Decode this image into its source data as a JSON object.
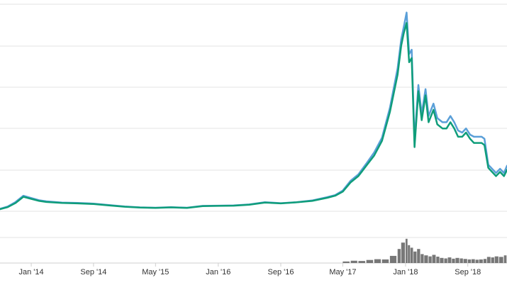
{
  "chart_data": {
    "type": "line",
    "title": "",
    "xlabel": "",
    "ylabel": "",
    "grid": true,
    "legend": "none",
    "x_ticks": [
      "Jan '14",
      "Sep '14",
      "May '15",
      "Jan '16",
      "Sep '16",
      "May '17",
      "Jan '18",
      "Sep '18"
    ],
    "x_tick_dates": [
      "2014-01-01",
      "2014-09-01",
      "2015-05-01",
      "2016-01-01",
      "2016-09-01",
      "2017-05-01",
      "2018-01-01",
      "2018-09-01"
    ],
    "xlim": [
      "2013-09-01",
      "2019-02-01"
    ],
    "ylim": [
      0,
      100
    ],
    "series": [
      {
        "color": "#0f9d7a",
        "points": [
          [
            "2013-09-01",
            1
          ],
          [
            "2013-10-01",
            2
          ],
          [
            "2013-11-01",
            4
          ],
          [
            "2013-12-01",
            7
          ],
          [
            "2014-01-01",
            6
          ],
          [
            "2014-02-01",
            5
          ],
          [
            "2014-03-01",
            4.5
          ],
          [
            "2014-05-01",
            4
          ],
          [
            "2014-07-01",
            3.8
          ],
          [
            "2014-09-01",
            3.5
          ],
          [
            "2014-11-01",
            2.8
          ],
          [
            "2015-01-01",
            2.2
          ],
          [
            "2015-03-01",
            1.8
          ],
          [
            "2015-05-01",
            1.6
          ],
          [
            "2015-07-01",
            1.9
          ],
          [
            "2015-09-01",
            1.6
          ],
          [
            "2015-11-01",
            2.5
          ],
          [
            "2016-01-01",
            2.6
          ],
          [
            "2016-03-01",
            2.7
          ],
          [
            "2016-05-01",
            3.2
          ],
          [
            "2016-07-01",
            4.2
          ],
          [
            "2016-09-01",
            3.8
          ],
          [
            "2016-11-01",
            4.3
          ],
          [
            "2017-01-01",
            5
          ],
          [
            "2017-03-01",
            6.5
          ],
          [
            "2017-04-01",
            7.5
          ],
          [
            "2017-05-01",
            9.5
          ],
          [
            "2017-06-01",
            14
          ],
          [
            "2017-07-01",
            17
          ],
          [
            "2017-08-01",
            22
          ],
          [
            "2017-09-01",
            27
          ],
          [
            "2017-10-01",
            34
          ],
          [
            "2017-11-01",
            48
          ],
          [
            "2017-12-01",
            66
          ],
          [
            "2017-12-15",
            80
          ],
          [
            "2017-12-25",
            86
          ],
          [
            "2018-01-05",
            91
          ],
          [
            "2018-01-15",
            72
          ],
          [
            "2018-01-25",
            74
          ],
          [
            "2018-02-05",
            31
          ],
          [
            "2018-02-20",
            58
          ],
          [
            "2018-03-05",
            44
          ],
          [
            "2018-03-20",
            56
          ],
          [
            "2018-04-01",
            43
          ],
          [
            "2018-04-20",
            49
          ],
          [
            "2018-05-05",
            42
          ],
          [
            "2018-05-25",
            40
          ],
          [
            "2018-06-10",
            40
          ],
          [
            "2018-06-25",
            43
          ],
          [
            "2018-07-10",
            40
          ],
          [
            "2018-07-25",
            36
          ],
          [
            "2018-08-10",
            36
          ],
          [
            "2018-08-25",
            38
          ],
          [
            "2018-09-10",
            35
          ],
          [
            "2018-09-25",
            33
          ],
          [
            "2018-10-10",
            33
          ],
          [
            "2018-10-25",
            33
          ],
          [
            "2018-11-05",
            32
          ],
          [
            "2018-11-20",
            21
          ],
          [
            "2018-12-05",
            19
          ],
          [
            "2018-12-20",
            17
          ],
          [
            "2019-01-05",
            19
          ],
          [
            "2019-01-20",
            17
          ],
          [
            "2019-02-01",
            20
          ]
        ]
      },
      {
        "color": "#5a9fd8",
        "points": [
          [
            "2013-09-01",
            1.2
          ],
          [
            "2013-10-01",
            2.3
          ],
          [
            "2013-11-01",
            4.5
          ],
          [
            "2013-12-01",
            7.5
          ],
          [
            "2014-01-01",
            6.4
          ],
          [
            "2014-02-01",
            5.3
          ],
          [
            "2014-03-01",
            4.8
          ],
          [
            "2014-05-01",
            4.2
          ],
          [
            "2014-07-01",
            4
          ],
          [
            "2014-09-01",
            3.7
          ],
          [
            "2014-11-01",
            3
          ],
          [
            "2015-01-01",
            2.3
          ],
          [
            "2015-03-01",
            1.9
          ],
          [
            "2015-05-01",
            1.7
          ],
          [
            "2015-07-01",
            2
          ],
          [
            "2015-09-01",
            1.7
          ],
          [
            "2015-11-01",
            2.6
          ],
          [
            "2016-01-01",
            2.7
          ],
          [
            "2016-03-01",
            2.8
          ],
          [
            "2016-05-01",
            3.3
          ],
          [
            "2016-07-01",
            4.4
          ],
          [
            "2016-09-01",
            3.9
          ],
          [
            "2016-11-01",
            4.4
          ],
          [
            "2017-01-01",
            5.2
          ],
          [
            "2017-03-01",
            6.8
          ],
          [
            "2017-04-01",
            7.8
          ],
          [
            "2017-05-01",
            10
          ],
          [
            "2017-06-01",
            14.8
          ],
          [
            "2017-07-01",
            17.8
          ],
          [
            "2017-08-01",
            23
          ],
          [
            "2017-09-01",
            28.5
          ],
          [
            "2017-10-01",
            35.5
          ],
          [
            "2017-11-01",
            50
          ],
          [
            "2017-12-01",
            69
          ],
          [
            "2017-12-15",
            83
          ],
          [
            "2017-12-25",
            89
          ],
          [
            "2018-01-05",
            96
          ],
          [
            "2018-01-15",
            76
          ],
          [
            "2018-01-25",
            78
          ],
          [
            "2018-02-05",
            34
          ],
          [
            "2018-02-20",
            61
          ],
          [
            "2018-03-05",
            47
          ],
          [
            "2018-03-20",
            59
          ],
          [
            "2018-04-01",
            46
          ],
          [
            "2018-04-20",
            52
          ],
          [
            "2018-05-05",
            45
          ],
          [
            "2018-05-25",
            43
          ],
          [
            "2018-06-10",
            43
          ],
          [
            "2018-06-25",
            46
          ],
          [
            "2018-07-10",
            43
          ],
          [
            "2018-07-25",
            39
          ],
          [
            "2018-08-10",
            38
          ],
          [
            "2018-08-25",
            40
          ],
          [
            "2018-09-10",
            37
          ],
          [
            "2018-09-25",
            36
          ],
          [
            "2018-10-10",
            36
          ],
          [
            "2018-10-25",
            36
          ],
          [
            "2018-11-05",
            35
          ],
          [
            "2018-11-20",
            22.5
          ],
          [
            "2018-12-05",
            20.5
          ],
          [
            "2018-12-20",
            18.5
          ],
          [
            "2019-01-05",
            20.5
          ],
          [
            "2019-01-20",
            18.5
          ],
          [
            "2019-02-01",
            22
          ]
        ]
      }
    ],
    "volume": {
      "color": "#777777",
      "ylim": [
        0,
        100
      ],
      "bars": [
        [
          "2017-05-01",
          6
        ],
        [
          "2017-06-01",
          9
        ],
        [
          "2017-07-01",
          8
        ],
        [
          "2017-08-01",
          12
        ],
        [
          "2017-09-01",
          15
        ],
        [
          "2017-10-01",
          14
        ],
        [
          "2017-11-01",
          28
        ],
        [
          "2017-12-01",
          55
        ],
        [
          "2017-12-15",
          80
        ],
        [
          "2018-01-01",
          95
        ],
        [
          "2018-01-10",
          70
        ],
        [
          "2018-01-20",
          60
        ],
        [
          "2018-02-01",
          45
        ],
        [
          "2018-02-15",
          55
        ],
        [
          "2018-03-01",
          35
        ],
        [
          "2018-03-15",
          30
        ],
        [
          "2018-04-01",
          26
        ],
        [
          "2018-04-15",
          32
        ],
        [
          "2018-05-01",
          25
        ],
        [
          "2018-05-15",
          20
        ],
        [
          "2018-06-01",
          18
        ],
        [
          "2018-06-15",
          22
        ],
        [
          "2018-07-01",
          17
        ],
        [
          "2018-07-15",
          20
        ],
        [
          "2018-08-01",
          18
        ],
        [
          "2018-08-15",
          16
        ],
        [
          "2018-09-01",
          14
        ],
        [
          "2018-09-15",
          15
        ],
        [
          "2018-10-01",
          13
        ],
        [
          "2018-10-15",
          14
        ],
        [
          "2018-11-01",
          16
        ],
        [
          "2018-11-15",
          24
        ],
        [
          "2018-12-01",
          22
        ],
        [
          "2018-12-15",
          26
        ],
        [
          "2019-01-01",
          24
        ],
        [
          "2019-01-20",
          30
        ]
      ]
    }
  }
}
